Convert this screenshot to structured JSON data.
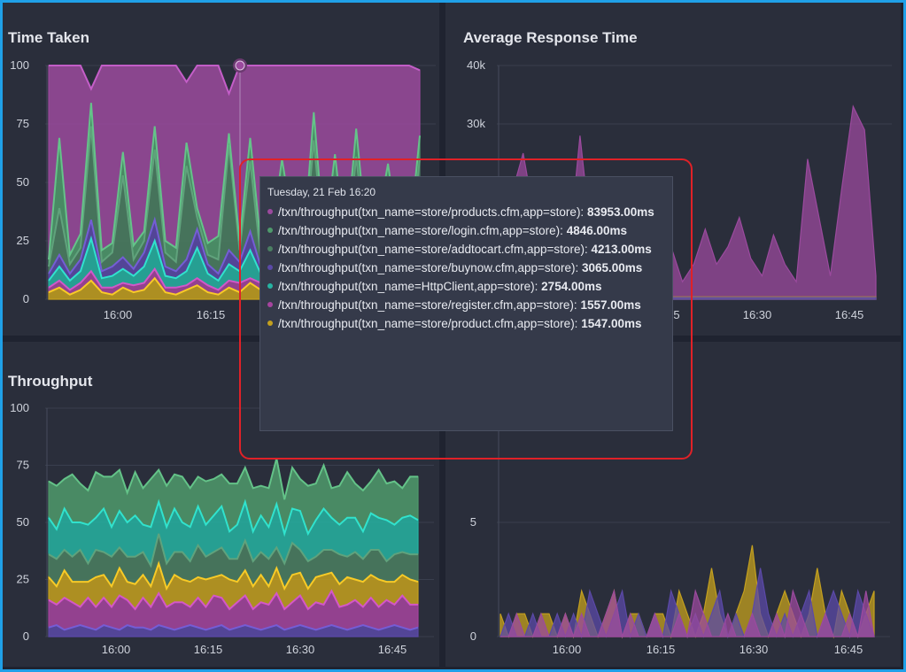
{
  "panels": {
    "time_taken": {
      "title": "Time Taken"
    },
    "avg_response": {
      "title": "Average Response Time"
    },
    "throughput": {
      "title": "Throughput"
    },
    "bottom_right": {
      "title": ""
    }
  },
  "colors": {
    "products": "#9b4a9e",
    "login": "#4f9a6c",
    "addtocart": "#4b7f62",
    "buynow": "#5b49a8",
    "httpclient": "#26b3a2",
    "register": "#a6449f",
    "product": "#c4a01e",
    "frame_border": "#1fa0e8",
    "highlight": "#e02127"
  },
  "tooltip": {
    "date": "Tuesday, 21 Feb 16:20",
    "items": [
      {
        "label": "/txn/throughput(txn_name=store/products.cfm,app=store):",
        "value": "83953.00ms",
        "color_key": "products"
      },
      {
        "label": "/txn/throughput(txn_name=store/login.cfm,app=store):",
        "value": "4846.00ms",
        "color_key": "login"
      },
      {
        "label": "/txn/throughput(txn_name=store/addtocart.cfm,app=store):",
        "value": "4213.00ms",
        "color_key": "addtocart"
      },
      {
        "label": "/txn/throughput(txn_name=store/buynow.cfm,app=store):",
        "value": "3065.00ms",
        "color_key": "buynow"
      },
      {
        "label": "/txn/throughput(txn_name=HttpClient,app=store):",
        "value": "2754.00ms",
        "color_key": "httpclient"
      },
      {
        "label": "/txn/throughput(txn_name=store/register.cfm,app=store):",
        "value": "1557.00ms",
        "color_key": "register"
      },
      {
        "label": "/txn/throughput(txn_name=store/product.cfm,app=store):",
        "value": "1547.00ms",
        "color_key": "product"
      }
    ]
  },
  "chart_data": [
    {
      "id": "time_taken",
      "type": "area",
      "title": "Time Taken",
      "stacked": "percent",
      "ylim": [
        0,
        100
      ],
      "yticks": [
        "0",
        "25",
        "50",
        "75",
        "100"
      ],
      "xticks": [
        "16:00",
        "16:15"
      ],
      "grid": true,
      "series": [
        {
          "color_key": "product",
          "values": [
            3,
            5,
            2,
            4,
            8,
            3,
            2,
            5,
            3,
            4,
            9,
            3,
            2,
            4,
            6,
            3,
            2,
            5,
            3,
            7,
            4,
            2,
            3,
            5,
            2,
            4,
            3,
            6,
            2,
            3,
            4,
            5,
            3,
            2,
            4,
            3
          ]
        },
        {
          "color_key": "register",
          "values": [
            2,
            3,
            2,
            3,
            4,
            2,
            3,
            2,
            3,
            3,
            4,
            2,
            3,
            2,
            3,
            3,
            2,
            3,
            4,
            2,
            3,
            2,
            3,
            3,
            2,
            3,
            2,
            3,
            3,
            2,
            3,
            2,
            3,
            3,
            2,
            3
          ]
        },
        {
          "color_key": "httpclient",
          "values": [
            3,
            6,
            4,
            5,
            14,
            4,
            5,
            6,
            4,
            7,
            12,
            5,
            4,
            6,
            13,
            5,
            4,
            7,
            5,
            12,
            4,
            6,
            5,
            8,
            4,
            6,
            5,
            7,
            4,
            6,
            5,
            7,
            4,
            6,
            5,
            8
          ]
        },
        {
          "color_key": "buynow",
          "values": [
            3,
            5,
            3,
            5,
            8,
            3,
            4,
            5,
            3,
            6,
            9,
            4,
            3,
            5,
            8,
            4,
            3,
            6,
            4,
            8,
            3,
            5,
            4,
            6,
            3,
            5,
            4,
            6,
            3,
            5,
            4,
            6,
            3,
            5,
            4,
            6
          ]
        },
        {
          "color_key": "addtocart",
          "values": [
            3,
            20,
            4,
            5,
            40,
            4,
            6,
            35,
            4,
            5,
            30,
            6,
            4,
            40,
            5,
            4,
            6,
            45,
            5,
            30,
            4,
            6,
            35,
            5,
            4,
            50,
            5,
            30,
            4,
            45,
            5,
            6,
            35,
            5,
            4,
            40
          ]
        },
        {
          "color_key": "login",
          "values": [
            3,
            30,
            4,
            6,
            10,
            5,
            4,
            10,
            6,
            4,
            10,
            5,
            6,
            10,
            4,
            5,
            10,
            5,
            4,
            10,
            6,
            5,
            10,
            5,
            6,
            12,
            5,
            10,
            6,
            12,
            5,
            6,
            10,
            5,
            6,
            10
          ]
        },
        {
          "color_key": "products",
          "values": [
            83,
            31,
            81,
            72,
            6,
            79,
            76,
            37,
            77,
            71,
            26,
            75,
            78,
            26,
            61,
            76,
            73,
            17,
            75,
            31,
            76,
            74,
            40,
            69,
            79,
            20,
            76,
            38,
            78,
            27,
            74,
            69,
            42,
            74,
            75,
            28
          ]
        }
      ]
    },
    {
      "id": "avg_response",
      "type": "area",
      "title": "Average Response Time",
      "ylim": [
        0,
        40000
      ],
      "yticks": [
        "40k",
        "30k"
      ],
      "xticks": [
        "5",
        "16:30",
        "16:45"
      ],
      "grid": true,
      "series": [
        {
          "color_key": "products",
          "values": [
            12000,
            18000,
            25000,
            14000,
            9000,
            6000,
            8000,
            28000,
            10000,
            6000,
            9000,
            14000,
            8000,
            4000,
            20000,
            9000,
            3000,
            6000,
            12000,
            6000,
            9000,
            14000,
            7000,
            4000,
            11000,
            6000,
            3000,
            24000,
            14000,
            4000,
            19000,
            33000,
            29000,
            4000
          ]
        },
        {
          "color_key": "product",
          "values": [
            400,
            400,
            400,
            400,
            400,
            400,
            400,
            400,
            400,
            400,
            400,
            400,
            400,
            400,
            400,
            400,
            400,
            400,
            400,
            400,
            400,
            400,
            400,
            400,
            400,
            400,
            400,
            400,
            400,
            400,
            400,
            400,
            400,
            400
          ]
        },
        {
          "color_key": "buynow",
          "values": [
            300,
            300,
            300,
            300,
            300,
            300,
            300,
            300,
            300,
            300,
            300,
            300,
            300,
            300,
            300,
            300,
            300,
            300,
            300,
            300,
            300,
            300,
            300,
            300,
            300,
            300,
            300,
            300,
            300,
            300,
            300,
            300,
            300,
            300
          ]
        }
      ]
    },
    {
      "id": "throughput",
      "type": "area",
      "title": "Throughput",
      "ylim": [
        0,
        100
      ],
      "yticks": [
        "0",
        "25",
        "50",
        "75",
        "100"
      ],
      "xticks": [
        "16:00",
        "16:15",
        "16:30",
        "16:45"
      ],
      "grid": true,
      "series": [
        {
          "color_key": "buynow",
          "values": [
            4,
            5,
            3,
            4,
            5,
            4,
            3,
            5,
            4,
            3,
            5,
            4,
            4,
            3,
            5,
            4,
            3,
            4,
            5,
            4,
            3,
            4,
            5,
            3,
            4,
            5,
            4,
            3,
            4,
            5,
            3,
            4,
            5,
            4,
            3,
            4,
            5,
            4,
            3,
            4,
            5,
            4,
            3,
            4,
            5,
            4,
            3,
            4
          ]
        },
        {
          "color_key": "register",
          "values": [
            12,
            9,
            14,
            11,
            8,
            13,
            10,
            12,
            9,
            15,
            11,
            8,
            13,
            10,
            14,
            9,
            12,
            11,
            8,
            13,
            10,
            14,
            12,
            9,
            11,
            13,
            8,
            12,
            10,
            14,
            9,
            11,
            13,
            8,
            12,
            10,
            15,
            9,
            11,
            12,
            8,
            13,
            10,
            12,
            9,
            14,
            11,
            10
          ]
        },
        {
          "color_key": "product",
          "values": [
            10,
            8,
            12,
            9,
            11,
            7,
            13,
            10,
            9,
            12,
            8,
            11,
            10,
            9,
            13,
            8,
            12,
            10,
            11,
            9,
            12,
            8,
            10,
            13,
            9,
            11,
            10,
            12,
            8,
            11,
            9,
            12,
            10,
            9,
            11,
            13,
            8,
            10,
            12,
            9,
            11,
            10,
            12,
            8,
            10,
            9,
            11,
            10
          ]
        },
        {
          "color_key": "addtocart",
          "values": [
            10,
            12,
            9,
            11,
            14,
            8,
            12,
            10,
            13,
            9,
            11,
            12,
            10,
            9,
            13,
            11,
            10,
            12,
            9,
            14,
            10,
            11,
            12,
            9,
            10,
            13,
            11,
            10,
            12,
            9,
            11,
            14,
            10,
            12,
            9,
            11,
            10,
            13,
            9,
            12,
            10,
            11,
            13,
            9,
            12,
            10,
            11,
            12
          ]
        },
        {
          "color_key": "httpclient",
          "values": [
            16,
            13,
            18,
            15,
            12,
            17,
            14,
            19,
            13,
            16,
            15,
            18,
            12,
            17,
            14,
            16,
            19,
            13,
            15,
            17,
            14,
            16,
            18,
            12,
            15,
            17,
            13,
            16,
            14,
            19,
            13,
            15,
            17,
            12,
            16,
            18,
            14,
            13,
            17,
            15,
            12,
            16,
            14,
            18,
            13,
            15,
            17,
            15
          ]
        },
        {
          "color_key": "login",
          "values": [
            16,
            19,
            13,
            21,
            17,
            15,
            20,
            14,
            22,
            18,
            13,
            19,
            16,
            21,
            14,
            18,
            15,
            20,
            17,
            13,
            19,
            16,
            14,
            21,
            18,
            15,
            19,
            13,
            17,
            20,
            15,
            18,
            14,
            21,
            16,
            19,
            13,
            17,
            20,
            15,
            18,
            14,
            21,
            16,
            19,
            13,
            17,
            19
          ]
        }
      ]
    },
    {
      "id": "bottom_right",
      "type": "area",
      "ylim": [
        0,
        10
      ],
      "yticks": [
        "0",
        "5"
      ],
      "xticks": [
        "16:00",
        "16:15",
        "16:30",
        "16:45"
      ],
      "grid": true,
      "series": [
        {
          "color_key": "product",
          "values": [
            1,
            0,
            1,
            1,
            0,
            1,
            1,
            0,
            1,
            0,
            2,
            1,
            0,
            1,
            2,
            0,
            1,
            1,
            0,
            1,
            1,
            0,
            2,
            1,
            0,
            1,
            3,
            1,
            0,
            1,
            2,
            4,
            1,
            0,
            1,
            2,
            1,
            0,
            1,
            3,
            1,
            0,
            2,
            1,
            0,
            1,
            2
          ]
        },
        {
          "color_key": "buynow",
          "values": [
            0,
            1,
            0,
            0,
            1,
            0,
            0,
            1,
            0,
            1,
            0,
            2,
            1,
            0,
            1,
            2,
            0,
            1,
            0,
            1,
            0,
            2,
            1,
            0,
            1,
            0,
            1,
            2,
            0,
            1,
            0,
            1,
            3,
            1,
            0,
            1,
            0,
            1,
            2,
            0,
            1,
            2,
            1,
            0,
            2,
            1,
            0
          ]
        },
        {
          "color_key": "products",
          "values": [
            0,
            0,
            1,
            0,
            0,
            1,
            0,
            0,
            1,
            0,
            1,
            0,
            0,
            1,
            2,
            0,
            1,
            0,
            0,
            1,
            0,
            0,
            1,
            0,
            2,
            1,
            0,
            0,
            1,
            0,
            0,
            1,
            0,
            0,
            1,
            0,
            2,
            1,
            0,
            0,
            1,
            0,
            0,
            1,
            0,
            2,
            0
          ]
        }
      ]
    }
  ]
}
